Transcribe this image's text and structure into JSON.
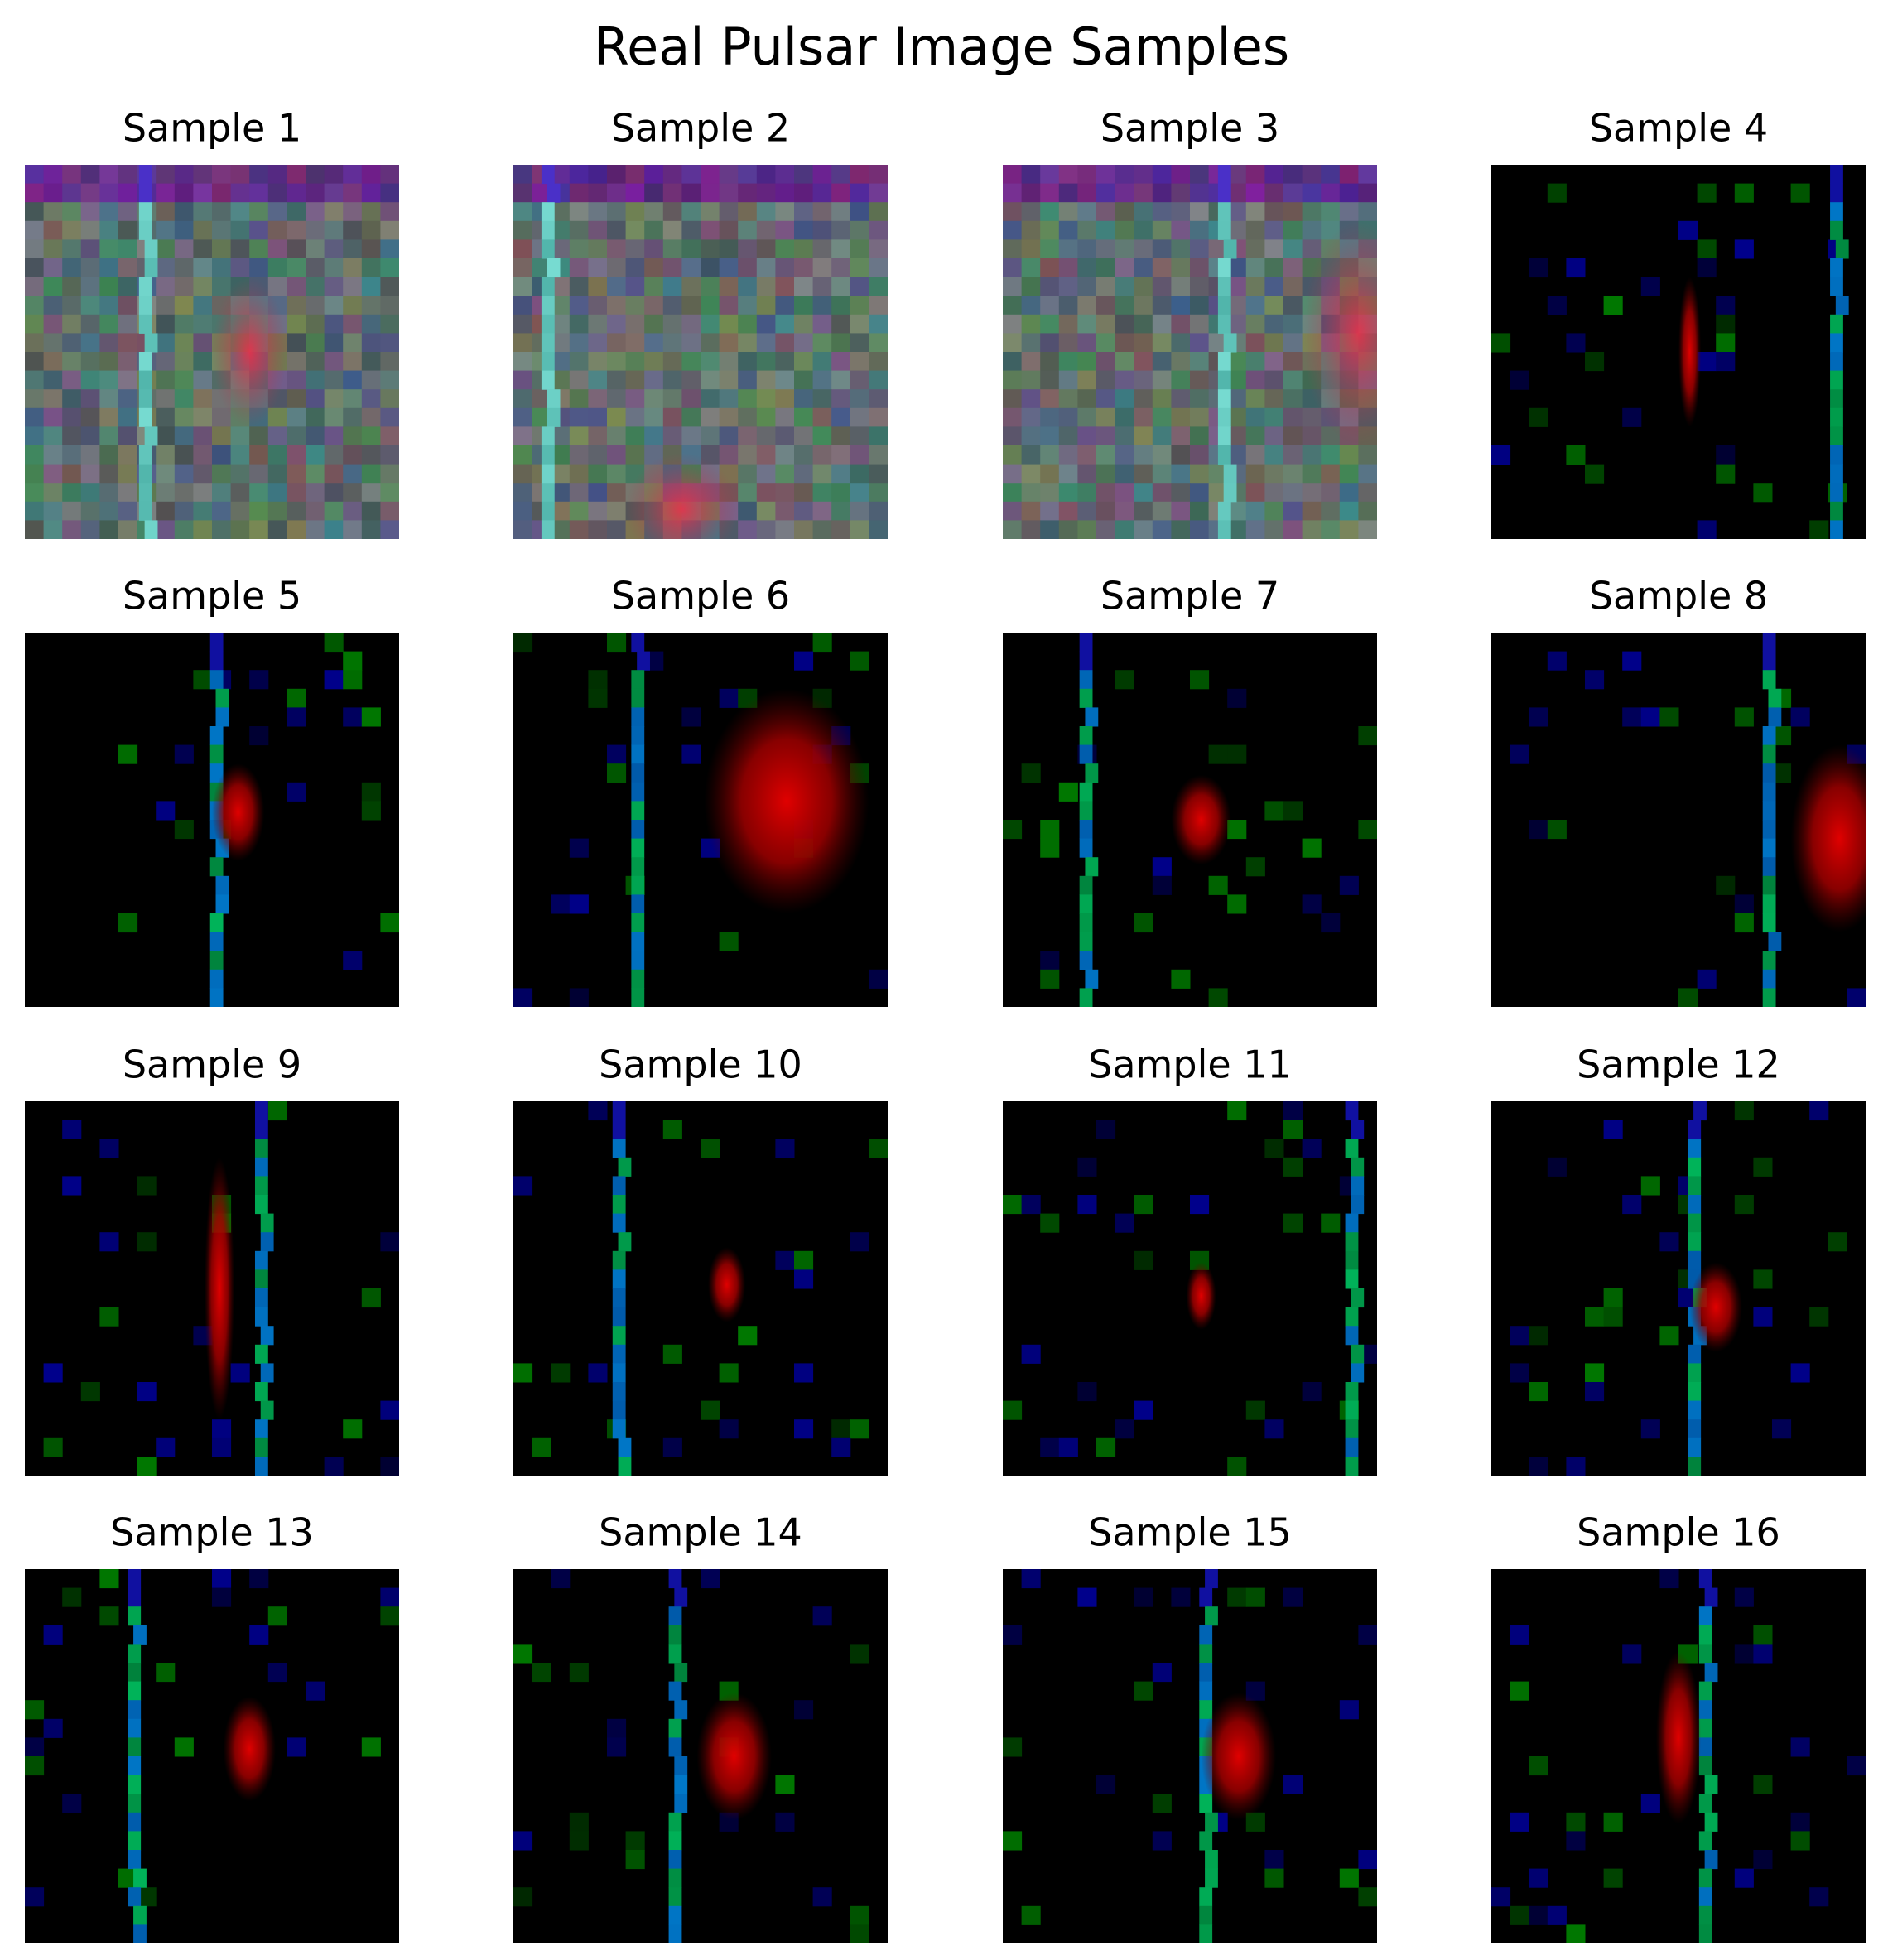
{
  "title": "Real Pulsar Image Samples",
  "samples": [
    "Sample 1",
    "Sample 2",
    "Sample 3",
    "Sample 4",
    "Sample 5",
    "Sample 6",
    "Sample 7",
    "Sample 8",
    "Sample 9",
    "Sample 10",
    "Sample 11",
    "Sample 12",
    "Sample 13",
    "Sample 14",
    "Sample 15",
    "Sample 16"
  ]
}
